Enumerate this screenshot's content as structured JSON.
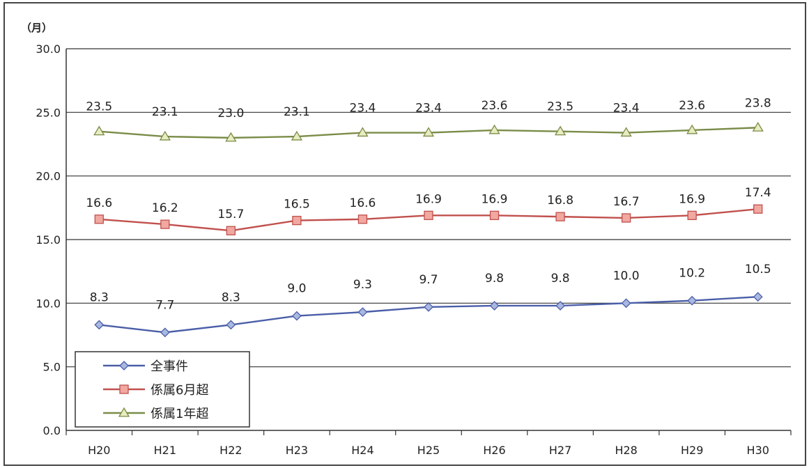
{
  "chart_data": {
    "type": "line",
    "unit_label": "（月）",
    "categories": [
      "H20",
      "H21",
      "H22",
      "H23",
      "H24",
      "H25",
      "H26",
      "H27",
      "H28",
      "H29",
      "H30"
    ],
    "ylim": [
      0,
      30
    ],
    "yticks": [
      "0.0",
      "5.0",
      "10.0",
      "15.0",
      "20.0",
      "25.0",
      "30.0"
    ],
    "grid": true,
    "legend_position": "bottom-left",
    "series": [
      {
        "name": "全事件",
        "values": [
          8.3,
          7.7,
          8.3,
          9.0,
          9.3,
          9.7,
          9.8,
          9.8,
          10.0,
          10.2,
          10.5
        ],
        "labels": [
          "8.3",
          "7.7",
          "8.3",
          "9.0",
          "9.3",
          "9.7",
          "9.8",
          "9.8",
          "10.0",
          "10.2",
          "10.5"
        ],
        "color": "#4a5ea8",
        "fill": "#a9b8e0",
        "marker": "diamond"
      },
      {
        "name": "係属6月超",
        "values": [
          16.6,
          16.2,
          15.7,
          16.5,
          16.6,
          16.9,
          16.9,
          16.8,
          16.7,
          16.9,
          17.4
        ],
        "labels": [
          "16.6",
          "16.2",
          "15.7",
          "16.5",
          "16.6",
          "16.9",
          "16.9",
          "16.8",
          "16.7",
          "16.9",
          "17.4"
        ],
        "color": "#c0504d",
        "fill": "#f0a8a0",
        "marker": "square"
      },
      {
        "name": "係属1年超",
        "values": [
          23.5,
          23.1,
          23.0,
          23.1,
          23.4,
          23.4,
          23.6,
          23.5,
          23.4,
          23.6,
          23.8
        ],
        "labels": [
          "23.5",
          "23.1",
          "23.0",
          "23.1",
          "23.4",
          "23.4",
          "23.6",
          "23.5",
          "23.4",
          "23.6",
          "23.8"
        ],
        "color": "#7a8c48",
        "fill": "#e8ecc0",
        "marker": "triangle"
      }
    ]
  }
}
